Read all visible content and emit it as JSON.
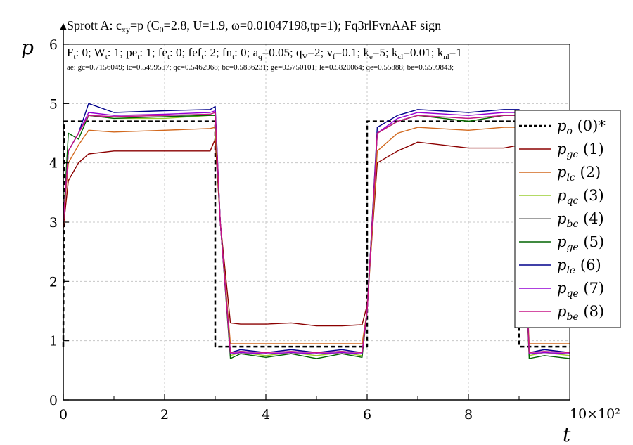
{
  "chart_data": {
    "type": "line",
    "title": "Sprott A: c_xy=p (C_0=2.8, U=1.9, ω=0.01047198,tp=1); Fq3rlFvnAAF sign",
    "title_parts": {
      "t1": "Sprott A: c",
      "t1_sub": "xy",
      "t2": "=p (C",
      "t2_sub": "0",
      "t3": "=2.8, U=1.9, ω=0.01047198,tp=1); Fq3rlFvnAAF sign"
    },
    "params_line": {
      "F_t": "F",
      "F_t_sub": "t",
      "F_t_val": ": 0; ",
      "W_t": "W",
      "W_t_sub": "t",
      "W_t_val": ": 1; ",
      "pe_t": "pe",
      "pe_t_sub": "t",
      "pe_t_val": ": 1; ",
      "fe_t": "fe",
      "fe_t_sub": "t",
      "fe_t_val": ": 0; ",
      "fef_t": "fef",
      "fef_t_sub": "t",
      "fef_t_val": ": 2; ",
      "fn_t": "fn",
      "fn_t_sub": "t",
      "fn_t_val": ": 0; ",
      "a_q": "a",
      "a_q_sub": "q",
      "a_q_val": "=0.05; ",
      "q_v": "q",
      "q_v_sub": "V",
      "q_v_val": "=2; ",
      "v_f": "v",
      "v_f_sub": "f",
      "v_f_val": "=0.1; ",
      "k_e": "k",
      "k_e_sub": "e",
      "k_e_val": "=5; ",
      "k_cl": "k",
      "k_cl_sub": "cl",
      "k_cl_val": "=0.01; ",
      "k_nl": "k",
      "k_nl_sub": "nl",
      "k_nl_val": "=1"
    },
    "ae_line": "ae: gc=0.7156049; lc=0.5499537; qc=0.5462968; bc=0.5836231; ge=0.5750101; le=0.5820064; qe=0.55888; be=0.5599843;",
    "xlabel": "t",
    "ylabel": "p",
    "x_multiplier": "10×10²",
    "xlim": [
      0,
      10
    ],
    "ylim": [
      0,
      6
    ],
    "x_ticks": [
      "0",
      "2",
      "4",
      "6",
      "8"
    ],
    "y_ticks": [
      "0",
      "1",
      "2",
      "3",
      "4",
      "5",
      "6"
    ],
    "grid": true,
    "legend_position": "right",
    "series": [
      {
        "name": "p_o (0)*",
        "sym": "p",
        "sub": "o",
        "tag": "(0)*",
        "color": "#000000",
        "dashed": true,
        "x": [
          0,
          0.02,
          3.0,
          3.0,
          6.0,
          6.0,
          9.0,
          9.0,
          10.0
        ],
        "y": [
          0.9,
          4.7,
          4.7,
          0.9,
          0.9,
          4.7,
          4.7,
          0.9,
          0.9
        ]
      },
      {
        "name": "p_gc (1)",
        "sym": "p",
        "sub": "gc",
        "tag": "(1)",
        "color": "#8b0000",
        "dashed": false,
        "x": [
          0,
          0.1,
          0.3,
          0.5,
          1.0,
          2.0,
          2.9,
          3.0,
          3.1,
          3.3,
          3.5,
          4.0,
          4.5,
          5.0,
          5.5,
          5.9,
          6.0,
          6.2,
          6.6,
          7.0,
          8.0,
          8.7,
          9.0,
          9.2,
          9.5,
          10.0
        ],
        "y": [
          2.9,
          3.7,
          4.0,
          4.15,
          4.2,
          4.2,
          4.2,
          4.4,
          3.0,
          1.3,
          1.28,
          1.28,
          1.3,
          1.25,
          1.25,
          1.27,
          1.6,
          4.0,
          4.2,
          4.35,
          4.25,
          4.25,
          4.3,
          1.3,
          1.25,
          1.25
        ]
      },
      {
        "name": "p_lc (2)",
        "sym": "p",
        "sub": "lc",
        "tag": "(2)",
        "color": "#d2691e",
        "dashed": false,
        "x": [
          0,
          0.1,
          0.3,
          0.5,
          1.0,
          2.0,
          2.9,
          3.0,
          3.1,
          3.3,
          3.5,
          4.0,
          4.5,
          5.0,
          5.5,
          5.9,
          6.0,
          6.2,
          6.6,
          7.0,
          8.0,
          8.7,
          9.0,
          9.2,
          9.5,
          10.0
        ],
        "y": [
          3.0,
          4.0,
          4.3,
          4.55,
          4.52,
          4.55,
          4.58,
          4.6,
          3.0,
          0.95,
          0.95,
          0.95,
          0.95,
          0.95,
          0.95,
          0.95,
          1.5,
          4.2,
          4.5,
          4.6,
          4.55,
          4.6,
          4.6,
          0.95,
          0.95,
          0.95
        ]
      },
      {
        "name": "p_qc (3)",
        "sym": "p",
        "sub": "qc",
        "tag": "(3)",
        "color": "#9acd32",
        "dashed": false,
        "x": [
          0,
          0.1,
          0.3,
          0.5,
          1.0,
          2.0,
          2.9,
          3.0,
          3.1,
          3.3,
          3.5,
          4.0,
          4.5,
          5.0,
          5.5,
          5.9,
          6.0,
          6.2,
          6.6,
          7.0,
          8.0,
          8.7,
          9.0,
          9.2,
          9.5,
          10.0
        ],
        "y": [
          3.0,
          4.2,
          4.5,
          4.8,
          4.75,
          4.75,
          4.8,
          4.8,
          3.0,
          0.75,
          0.8,
          0.75,
          0.8,
          0.75,
          0.8,
          0.75,
          1.5,
          4.5,
          4.7,
          4.8,
          4.7,
          4.8,
          4.8,
          0.75,
          0.8,
          0.75
        ]
      },
      {
        "name": "p_bc (4)",
        "sym": "p",
        "sub": "bc",
        "tag": "(4)",
        "color": "#808080",
        "dashed": false,
        "x": [
          0,
          0.1,
          0.3,
          0.5,
          1.0,
          2.0,
          2.9,
          3.0,
          3.1,
          3.3,
          3.5,
          4.0,
          4.5,
          5.0,
          5.5,
          5.9,
          6.0,
          6.2,
          6.6,
          7.0,
          8.0,
          8.7,
          9.0,
          9.2,
          9.5,
          10.0
        ],
        "y": [
          3.0,
          4.2,
          4.5,
          4.8,
          4.78,
          4.8,
          4.82,
          4.85,
          3.0,
          0.8,
          0.82,
          0.8,
          0.85,
          0.8,
          0.82,
          0.8,
          1.5,
          4.5,
          4.7,
          4.8,
          4.75,
          4.8,
          4.8,
          0.8,
          0.85,
          0.8
        ]
      },
      {
        "name": "p_ge (5)",
        "sym": "p",
        "sub": "ge",
        "tag": "(5)",
        "color": "#006400",
        "dashed": false,
        "x": [
          0,
          0.1,
          0.3,
          0.5,
          1.0,
          2.0,
          2.9,
          3.0,
          3.1,
          3.3,
          3.5,
          4.0,
          4.5,
          5.0,
          5.5,
          5.9,
          6.0,
          6.2,
          6.6,
          7.0,
          8.0,
          8.7,
          9.0,
          9.2,
          9.5,
          10.0
        ],
        "y": [
          3.0,
          4.5,
          4.4,
          4.8,
          4.75,
          4.78,
          4.8,
          4.8,
          3.0,
          0.7,
          0.78,
          0.72,
          0.78,
          0.7,
          0.78,
          0.72,
          1.5,
          4.5,
          4.7,
          4.8,
          4.7,
          4.8,
          4.8,
          0.7,
          0.75,
          0.7
        ]
      },
      {
        "name": "p_le (6)",
        "sym": "p",
        "sub": "le",
        "tag": "(6)",
        "color": "#00008b",
        "dashed": false,
        "x": [
          0,
          0.1,
          0.3,
          0.5,
          1.0,
          2.0,
          2.9,
          3.0,
          3.1,
          3.3,
          3.5,
          4.0,
          4.5,
          5.0,
          5.5,
          5.9,
          6.0,
          6.2,
          6.6,
          7.0,
          8.0,
          8.7,
          9.0,
          9.2,
          9.5,
          10.0
        ],
        "y": [
          3.0,
          4.2,
          4.5,
          5.0,
          4.85,
          4.88,
          4.9,
          4.95,
          3.0,
          0.8,
          0.85,
          0.8,
          0.85,
          0.8,
          0.85,
          0.8,
          1.5,
          4.6,
          4.8,
          4.9,
          4.85,
          4.9,
          4.9,
          0.8,
          0.85,
          0.8
        ]
      },
      {
        "name": "p_qe (7)",
        "sym": "p",
        "sub": "qe",
        "tag": "(7)",
        "color": "#9400d3",
        "dashed": false,
        "x": [
          0,
          0.1,
          0.3,
          0.5,
          1.0,
          2.0,
          2.9,
          3.0,
          3.1,
          3.3,
          3.5,
          4.0,
          4.5,
          5.0,
          5.5,
          5.9,
          6.0,
          6.2,
          6.6,
          7.0,
          8.0,
          8.7,
          9.0,
          9.2,
          9.5,
          10.0
        ],
        "y": [
          3.0,
          4.2,
          4.5,
          4.85,
          4.8,
          4.82,
          4.85,
          4.88,
          3.0,
          0.78,
          0.8,
          0.78,
          0.8,
          0.78,
          0.8,
          0.78,
          1.5,
          4.5,
          4.75,
          4.85,
          4.8,
          4.85,
          4.85,
          0.78,
          0.8,
          0.78
        ]
      },
      {
        "name": "p_be (8)",
        "sym": "p",
        "sub": "be",
        "tag": "(8)",
        "color": "#c71585",
        "dashed": false,
        "x": [
          0,
          0.1,
          0.3,
          0.5,
          1.0,
          2.0,
          2.9,
          3.0,
          3.1,
          3.3,
          3.5,
          4.0,
          4.5,
          5.0,
          5.5,
          5.9,
          6.0,
          6.2,
          6.6,
          7.0,
          8.0,
          8.7,
          9.0,
          9.2,
          9.5,
          10.0
        ],
        "y": [
          3.0,
          4.2,
          4.5,
          4.8,
          4.78,
          4.8,
          4.82,
          4.85,
          3.0,
          0.8,
          0.82,
          0.8,
          0.82,
          0.8,
          0.82,
          0.8,
          1.5,
          4.5,
          4.7,
          4.8,
          4.75,
          4.8,
          4.8,
          0.8,
          0.82,
          0.8
        ]
      }
    ]
  }
}
